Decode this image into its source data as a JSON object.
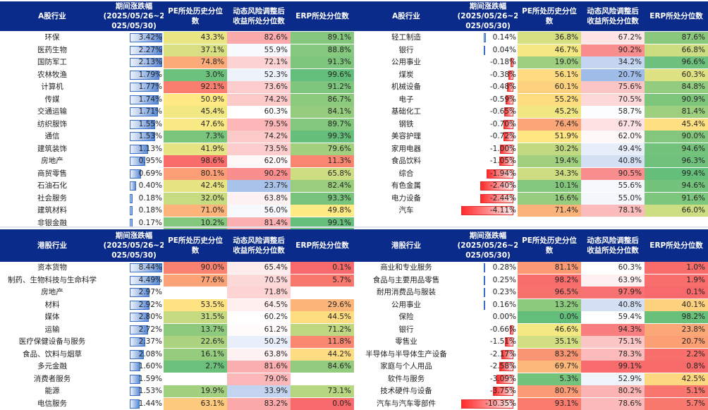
{
  "colors": {
    "header_bg": "#0b2b8a",
    "header_text": "#ffffff",
    "pos_bar": "#5a8ad6",
    "neg_bar": "#ff2a2a",
    "scale_low": "#63be7b",
    "scale_mid": "#ffeb84",
    "scale_high": "#f8696b"
  },
  "headers": {
    "a_industry": "A股行业",
    "hk_industry": "港股行业",
    "change": "期间涨跌幅\n(2025/05/26~2\n025/05/30)",
    "pe": "PE所处历史分位\n数",
    "risk_adj": "动态风险调整后\n收益所处分位数",
    "erp": "ERP所处分位数"
  },
  "a_left": [
    {
      "name": "环保",
      "chg": "3.42%",
      "v": 3.42,
      "pe": "43.3%",
      "pev": 43.3,
      "ra": "82.6%",
      "rav": 82.6,
      "erp": "89.1%",
      "erpv": 89.1
    },
    {
      "name": "医药生物",
      "chg": "2.27%",
      "v": 2.27,
      "pe": "37.1%",
      "pev": 37.1,
      "ra": "55.9%",
      "rav": 55.9,
      "erp": "88.8%",
      "erpv": 88.8
    },
    {
      "name": "国防军工",
      "chg": "2.13%",
      "v": 2.13,
      "pe": "74.8%",
      "pev": 74.8,
      "ra": "72.1%",
      "rav": 72.1,
      "erp": "91.3%",
      "erpv": 91.3
    },
    {
      "name": "农林牧渔",
      "chg": "1.79%",
      "v": 1.79,
      "pe": "3.0%",
      "pev": 3.0,
      "ra": "52.3%",
      "rav": 52.3,
      "erp": "99.6%",
      "erpv": 99.6
    },
    {
      "name": "计算机",
      "chg": "1.77%",
      "v": 1.77,
      "pe": "92.1%",
      "pev": 92.1,
      "ra": "73.6%",
      "rav": 73.6,
      "erp": "91.2%",
      "erpv": 91.2
    },
    {
      "name": "传媒",
      "chg": "1.74%",
      "v": 1.74,
      "pe": "50.9%",
      "pev": 50.9,
      "ra": "74.2%",
      "rav": 74.2,
      "erp": "86.7%",
      "erpv": 86.7
    },
    {
      "name": "交通运输",
      "chg": "1.71%",
      "v": 1.71,
      "pe": "45.4%",
      "pev": 45.4,
      "ra": "60.3%",
      "rav": 60.3,
      "erp": "84.1%",
      "erpv": 84.1
    },
    {
      "name": "纺织服饰",
      "chg": "1.55%",
      "v": 1.55,
      "pe": "47.6%",
      "pev": 47.6,
      "ra": "79.5%",
      "rav": 79.5,
      "erp": "89.7%",
      "erpv": 89.7
    },
    {
      "name": "通信",
      "chg": "1.53%",
      "v": 1.53,
      "pe": "7.3%",
      "pev": 7.3,
      "ra": "74.2%",
      "rav": 74.2,
      "erp": "99.3%",
      "erpv": 99.3
    },
    {
      "name": "建筑装饰",
      "chg": "1.13%",
      "v": 1.13,
      "pe": "41.9%",
      "pev": 41.9,
      "ra": "73.5%",
      "rav": 73.5,
      "erp": "79.6%",
      "erpv": 79.6
    },
    {
      "name": "房地产",
      "chg": "0.95%",
      "v": 0.95,
      "pe": "98.6%",
      "pev": 98.6,
      "ra": "62.0%",
      "rav": 62.0,
      "erp": "11.3%",
      "erpv": 11.3
    },
    {
      "name": "商贸零售",
      "chg": "0.69%",
      "v": 0.69,
      "pe": "80.1%",
      "pev": 80.1,
      "ra": "90.2%",
      "rav": 90.2,
      "erp": "65.8%",
      "erpv": 65.8
    },
    {
      "name": "石油石化",
      "chg": "0.40%",
      "v": 0.4,
      "pe": "42.4%",
      "pev": 42.4,
      "ra": "23.7%",
      "rav": 23.7,
      "erp": "82.4%",
      "erpv": 82.4
    },
    {
      "name": "社会服务",
      "chg": "0.18%",
      "v": 0.18,
      "pe": "32.0%",
      "pev": 32.0,
      "ra": "63.8%",
      "rav": 63.8,
      "erp": "93.3%",
      "erpv": 93.3
    },
    {
      "name": "建筑材料",
      "chg": "0.18%",
      "v": 0.18,
      "pe": "71.0%",
      "pev": 71.0,
      "ra": "56.0%",
      "rav": 56.0,
      "erp": "49.8%",
      "erpv": 49.8
    },
    {
      "name": "非银金融",
      "chg": "0.17%",
      "v": 0.17,
      "pe": "10.2%",
      "pev": 10.2,
      "ra": "81.4%",
      "rav": 81.4,
      "erp": "99.1%",
      "erpv": 99.1
    }
  ],
  "a_right": [
    {
      "name": "轻工制造",
      "chg": "0.14%",
      "v": 0.14,
      "pe": "36.8%",
      "pev": 36.8,
      "ra": "67.2%",
      "rav": 67.2,
      "erp": "87.6%",
      "erpv": 87.6
    },
    {
      "name": "银行",
      "chg": "0.04%",
      "v": 0.04,
      "pe": "46.7%",
      "pev": 46.7,
      "ra": "90.2%",
      "rav": 90.2,
      "erp": "66.8%",
      "erpv": 66.8
    },
    {
      "name": "公用事业",
      "chg": "-0.18%",
      "v": -0.18,
      "pe": "19.0%",
      "pev": 19.0,
      "ra": "34.2%",
      "rav": 34.2,
      "erp": "96.6%",
      "erpv": 96.6
    },
    {
      "name": "煤炭",
      "chg": "-0.38%",
      "v": -0.38,
      "pe": "56.1%",
      "pev": 56.1,
      "ra": "20.7%",
      "rav": 20.7,
      "erp": "60.3%",
      "erpv": 60.3
    },
    {
      "name": "机械设备",
      "chg": "-0.48%",
      "v": -0.48,
      "pe": "60.1%",
      "pev": 60.1,
      "ra": "75.6%",
      "rav": 75.6,
      "erp": "84.8%",
      "erpv": 84.8
    },
    {
      "name": "电子",
      "chg": "-0.59%",
      "v": -0.59,
      "pe": "55.2%",
      "pev": 55.2,
      "ra": "70.5%",
      "rav": 70.5,
      "erp": "90.9%",
      "erpv": 90.9
    },
    {
      "name": "基础化工",
      "chg": "-0.65%",
      "v": -0.65,
      "pe": "45.2%",
      "pev": 45.2,
      "ra": "58.7%",
      "rav": 58.7,
      "erp": "81.4%",
      "erpv": 81.4
    },
    {
      "name": "钢铁",
      "chg": "-0.70%",
      "v": -0.7,
      "pe": "76.4%",
      "pev": 76.4,
      "ra": "67.7%",
      "rav": 67.7,
      "erp": "45.4%",
      "erpv": 45.4
    },
    {
      "name": "美容护理",
      "chg": "-0.72%",
      "v": -0.72,
      "pe": "51.9%",
      "pev": 51.9,
      "ra": "62.0%",
      "rav": 62.0,
      "erp": "90.0%",
      "erpv": 90.0
    },
    {
      "name": "家用电器",
      "chg": "-1.00%",
      "v": -1.0,
      "pe": "30.2%",
      "pev": 30.2,
      "ra": "49.4%",
      "rav": 49.4,
      "erp": "94.6%",
      "erpv": 94.6
    },
    {
      "name": "食品饮料",
      "chg": "-1.05%",
      "v": -1.05,
      "pe": "19.4%",
      "pev": 19.4,
      "ra": "40.8%",
      "rav": 40.8,
      "erp": "96.3%",
      "erpv": 96.3
    },
    {
      "name": "综合",
      "chg": "-1.94%",
      "v": -1.94,
      "pe": "34.3%",
      "pev": 34.3,
      "ra": "90.5%",
      "rav": 90.5,
      "erp": "99.4%",
      "erpv": 99.4
    },
    {
      "name": "有色金属",
      "chg": "-2.40%",
      "v": -2.4,
      "pe": "10.1%",
      "pev": 10.1,
      "ra": "55.6%",
      "rav": 55.6,
      "erp": "94.6%",
      "erpv": 94.6
    },
    {
      "name": "电力设备",
      "chg": "-2.44%",
      "v": -2.44,
      "pe": "16.6%",
      "pev": 16.6,
      "ra": "55.0%",
      "rav": 55.0,
      "erp": "91.6%",
      "erpv": 91.6
    },
    {
      "name": "汽车",
      "chg": "-4.11%",
      "v": -4.11,
      "pe": "71.4%",
      "pev": 71.4,
      "ra": "78.1%",
      "rav": 78.1,
      "erp": "66.0%",
      "erpv": 66.0
    }
  ],
  "hk_left": [
    {
      "name": "资本货物",
      "chg": "8.44%",
      "v": 8.44,
      "pe": "90.0%",
      "pev": 90.0,
      "ra": "65.4%",
      "rav": 65.4,
      "erp": "0.1%",
      "erpv": 0.1
    },
    {
      "name": "制药、生物科技与生命科学",
      "chg": "4.49%",
      "v": 4.49,
      "pe": "77.6%",
      "pev": 77.6,
      "ra": "70.5%",
      "rav": 70.5,
      "erp": "5.7%",
      "erpv": 5.7
    },
    {
      "name": "房地产",
      "chg": "2.97%",
      "v": 2.97,
      "pe": "",
      "pev": null,
      "ra": "71.8%",
      "rav": 71.8,
      "erp": "",
      "erpv": null
    },
    {
      "name": "材料",
      "chg": "2.92%",
      "v": 2.92,
      "pe": "53.5%",
      "pev": 53.5,
      "ra": "64.5%",
      "rav": 64.5,
      "erp": "29.6%",
      "erpv": 29.6
    },
    {
      "name": "媒体",
      "chg": "2.80%",
      "v": 2.8,
      "pe": "31.5%",
      "pev": 31.5,
      "ra": "60.2%",
      "rav": 60.2,
      "erp": "44.5%",
      "erpv": 44.5
    },
    {
      "name": "运输",
      "chg": "2.72%",
      "v": 2.72,
      "pe": "13.7%",
      "pev": 13.7,
      "ra": "61.2%",
      "rav": 61.2,
      "erp": "71.2%",
      "erpv": 71.2
    },
    {
      "name": "医疗保健设备与服务",
      "chg": "2.37%",
      "v": 2.37,
      "pe": "22.6%",
      "pev": 22.6,
      "ra": "50.2%",
      "rav": 50.2,
      "erp": "11.8%",
      "erpv": 11.8
    },
    {
      "name": "食品、饮料与烟草",
      "chg": "2.08%",
      "v": 2.08,
      "pe": "16.1%",
      "pev": 16.1,
      "ra": "63.8%",
      "rav": 63.8,
      "erp": "44.2%",
      "erpv": 44.2
    },
    {
      "name": "多元金融",
      "chg": "1.60%",
      "v": 1.6,
      "pe": "2.7%",
      "pev": 2.7,
      "ra": "81.6%",
      "rav": 81.6,
      "erp": "84.6%",
      "erpv": 84.6
    },
    {
      "name": "消费者服务",
      "chg": "1.59%",
      "v": 1.59,
      "pe": "",
      "pev": null,
      "ra": "79.0%",
      "rav": 79.0,
      "erp": "",
      "erpv": null
    },
    {
      "name": "能源",
      "chg": "1.53%",
      "v": 1.53,
      "pe": "19.9%",
      "pev": 19.9,
      "ra": "33.9%",
      "rav": 33.9,
      "erp": "73.1%",
      "erpv": 73.1
    },
    {
      "name": "电信服务",
      "chg": "1.44%",
      "v": 1.44,
      "pe": "63.1%",
      "pev": 63.1,
      "ra": "83.2%",
      "rav": 83.2,
      "erp": "0.0%",
      "erpv": 0.0
    }
  ],
  "hk_right": [
    {
      "name": "商业和专业服务",
      "chg": "0.28%",
      "v": 0.28,
      "pe": "81.1%",
      "pev": 81.1,
      "ra": "60.3%",
      "rav": 60.3,
      "erp": "1.0%",
      "erpv": 1.0
    },
    {
      "name": "食品与主要用品零售",
      "chg": "0.25%",
      "v": 0.25,
      "pe": "98.2%",
      "pev": 98.2,
      "ra": "63.9%",
      "rav": 63.9,
      "erp": "1.9%",
      "erpv": 1.9
    },
    {
      "name": "耐用消费品与服装",
      "chg": "0.23%",
      "v": 0.23,
      "pe": "96.5%",
      "pev": 96.5,
      "ra": "97.9%",
      "rav": 97.9,
      "erp": "0.1%",
      "erpv": 0.1
    },
    {
      "name": "公用事业",
      "chg": "0.16%",
      "v": 0.16,
      "pe": "13.2%",
      "pev": 13.2,
      "ra": "40.8%",
      "rav": 40.8,
      "erp": "40.1%",
      "erpv": 40.1
    },
    {
      "name": "保险",
      "chg": "0.00%",
      "v": 0.0,
      "pe": "0.0%",
      "pev": 0.0,
      "ra": "59.4%",
      "rav": 59.4,
      "erp": "98.2%",
      "erpv": 98.2
    },
    {
      "name": "银行",
      "chg": "-0.66%",
      "v": -0.66,
      "pe": "46.6%",
      "pev": 46.6,
      "ra": "94.3%",
      "rav": 94.3,
      "erp": "23.8%",
      "erpv": 23.8
    },
    {
      "name": "零售业",
      "chg": "-1.51%",
      "v": -1.51,
      "pe": "35.1%",
      "pev": 35.1,
      "ra": "75.1%",
      "rav": 75.1,
      "erp": "20.7%",
      "erpv": 20.7
    },
    {
      "name": "半导体与半导体生产设备",
      "chg": "-2.17%",
      "v": -2.17,
      "pe": "83.2%",
      "pev": 83.2,
      "ra": "78.3%",
      "rav": 78.3,
      "erp": "2.2%",
      "erpv": 2.2
    },
    {
      "name": "家庭与个人用品",
      "chg": "-2.58%",
      "v": -2.58,
      "pe": "69.7%",
      "pev": 69.7,
      "ra": "99.1%",
      "rav": 99.1,
      "erp": "0.8%",
      "erpv": 0.8
    },
    {
      "name": "软件与服务",
      "chg": "-3.09%",
      "v": -3.09,
      "pe": "5.3%",
      "pev": 5.3,
      "ra": "52.9%",
      "rav": 52.9,
      "erp": "42.5%",
      "erpv": 42.5
    },
    {
      "name": "技术硬件与设备",
      "chg": "-3.75%",
      "v": -3.75,
      "pe": "80.7%",
      "pev": 80.7,
      "ra": "80.2%",
      "rav": 80.2,
      "erp": "5.1%",
      "erpv": 5.1
    },
    {
      "name": "汽车与汽车零部件",
      "chg": "-10.35%",
      "v": -10.35,
      "pe": "93.1%",
      "pev": 93.1,
      "ra": "78.6%",
      "rav": 78.6,
      "erp": "5.7%",
      "erpv": 5.7
    }
  ]
}
